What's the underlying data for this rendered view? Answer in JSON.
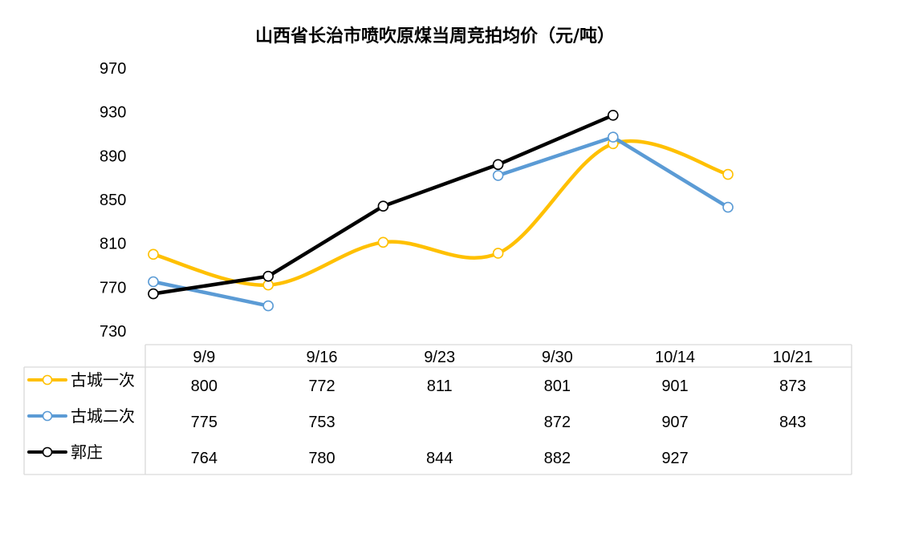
{
  "chart_data": {
    "type": "line",
    "title": "山西省长治市喷吹原煤当周竞拍均价（元/吨）",
    "xlabel": "",
    "ylabel": "",
    "categories": [
      "9/9",
      "9/16",
      "9/23",
      "9/30",
      "10/14",
      "10/21"
    ],
    "ylim": [
      730,
      970
    ],
    "yticks": [
      730,
      770,
      810,
      850,
      890,
      930,
      970
    ],
    "grid": false,
    "legend": "data-table-left",
    "point_x": [
      0,
      1,
      2,
      3,
      4,
      5
    ],
    "series": [
      {
        "name": "古城一次",
        "color": "#FFC000",
        "smooth": true,
        "values": [
          800,
          772,
          811,
          801,
          901,
          873
        ],
        "labels": [
          "800",
          "772",
          "811",
          "801",
          "901",
          "873"
        ]
      },
      {
        "name": "古城二次",
        "color": "#5B9BD5",
        "smooth": false,
        "values": [
          775,
          753,
          null,
          872,
          907,
          843
        ],
        "labels": [
          "775",
          "753",
          "",
          "872",
          "907",
          "843"
        ]
      },
      {
        "name": "郭庄",
        "color": "#000000",
        "smooth": false,
        "values": [
          764,
          780,
          844,
          882,
          927,
          null
        ],
        "labels": [
          "764",
          "780",
          "844",
          "882",
          "927",
          ""
        ]
      }
    ]
  }
}
